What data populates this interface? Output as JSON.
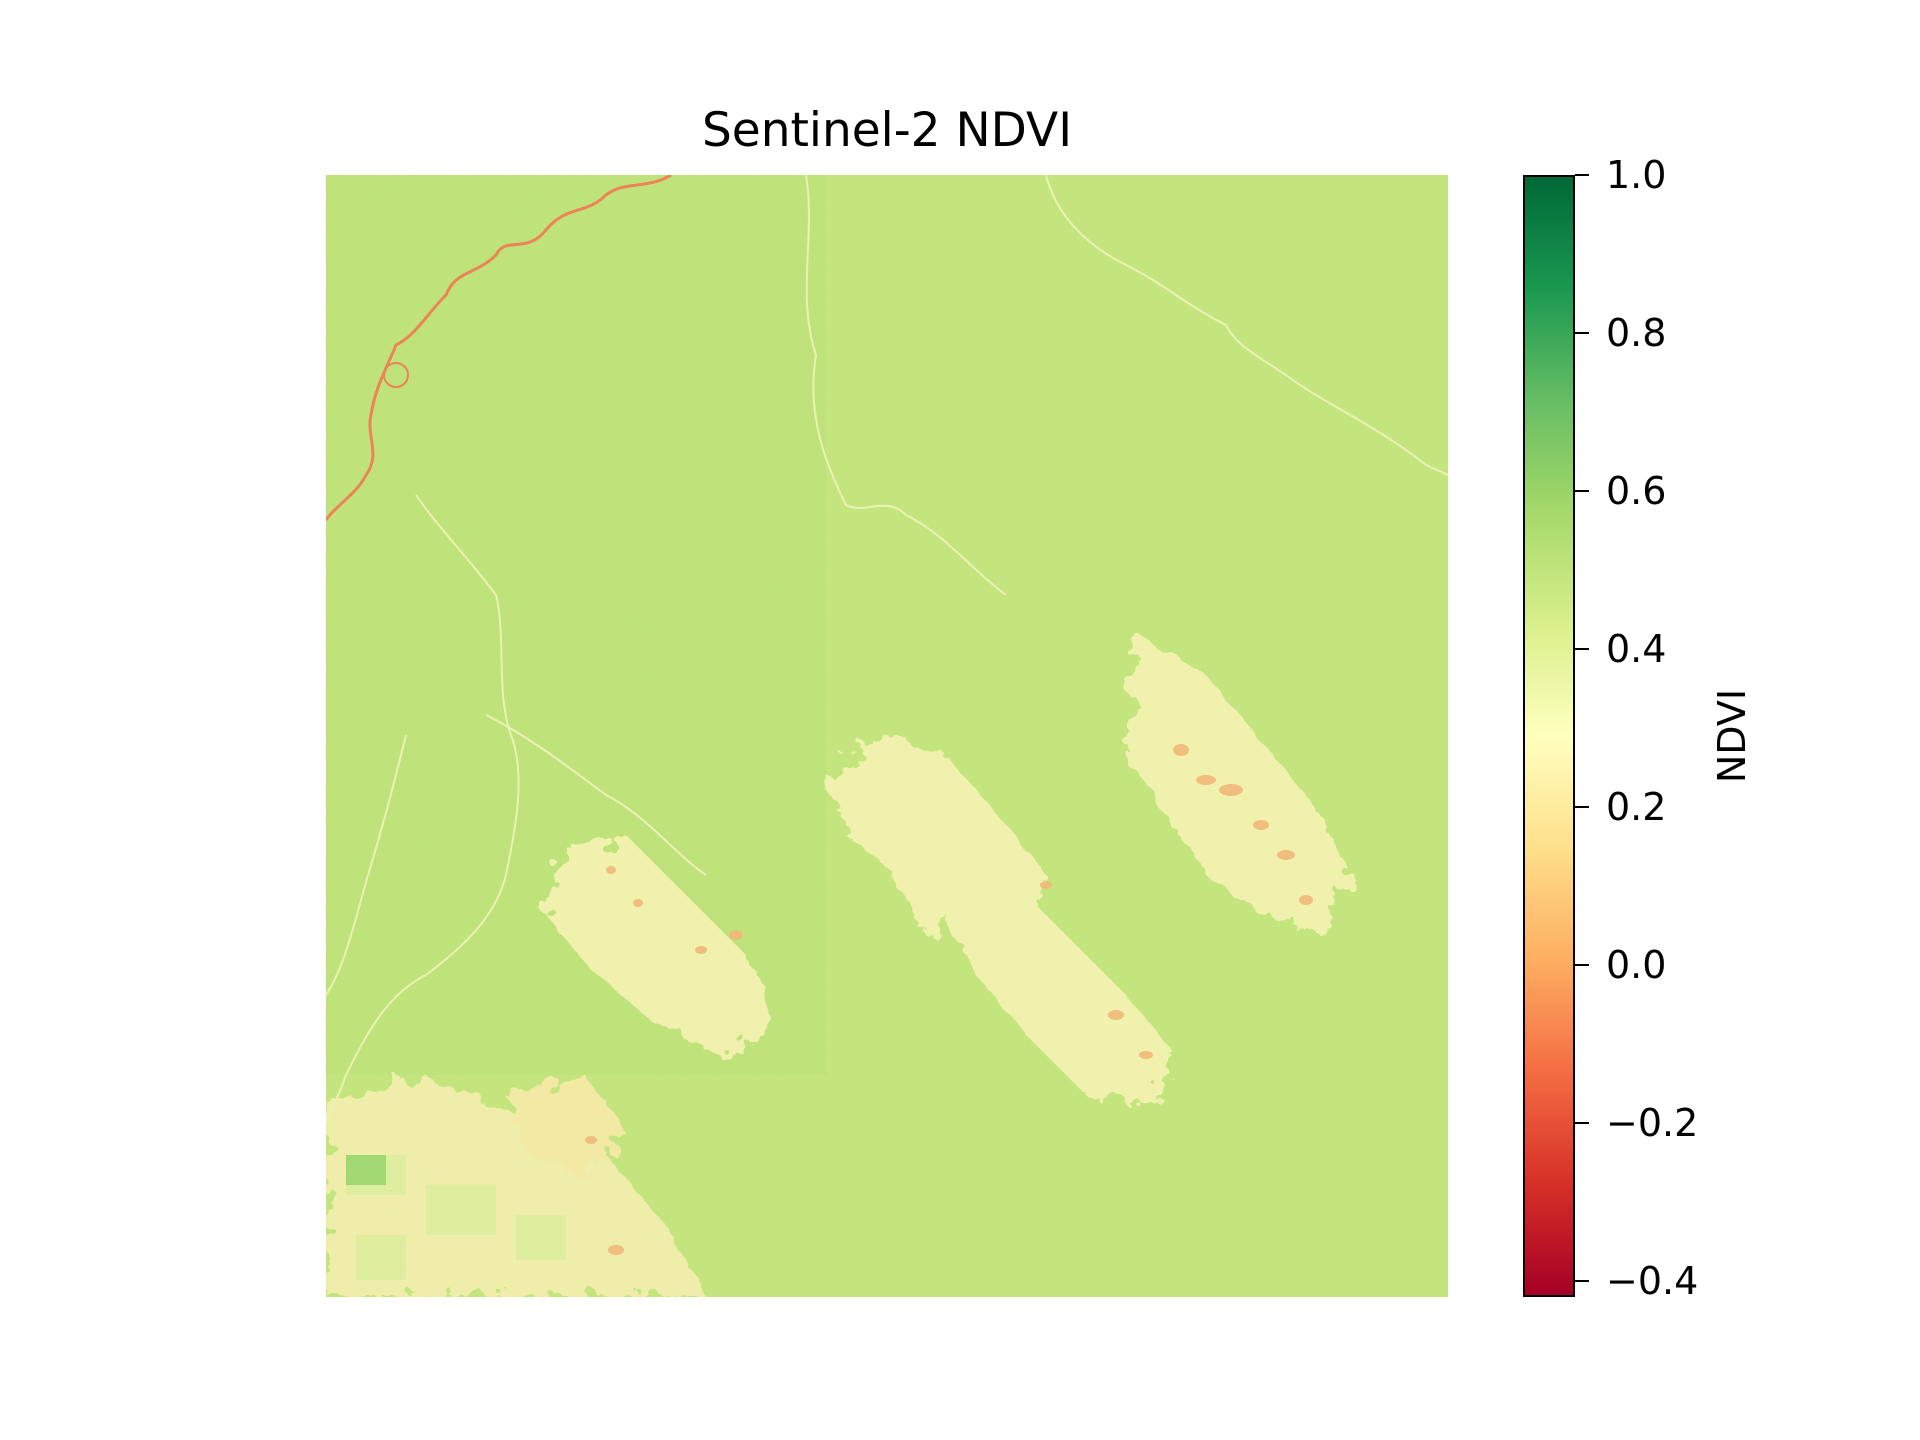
{
  "figure": {
    "title": "Sentinel-2 NDVI"
  },
  "colorbar": {
    "label": "NDVI",
    "colormap": "RdYlGn",
    "range": [
      -0.42,
      1.0
    ],
    "ticks": [
      {
        "value": 1.0,
        "label": "1.0"
      },
      {
        "value": 0.8,
        "label": "0.8"
      },
      {
        "value": 0.6,
        "label": "0.6"
      },
      {
        "value": 0.4,
        "label": "0.4"
      },
      {
        "value": 0.2,
        "label": "0.2"
      },
      {
        "value": 0.0,
        "label": "0.0"
      },
      {
        "value": -0.2,
        "label": "−0.2"
      },
      {
        "value": -0.4,
        "label": "−0.4"
      }
    ]
  },
  "colors": {
    "vegetation_base": "#c3e57b",
    "sparse_vegetation": "#f2f5b0",
    "bare_soil": "#f9d88c",
    "water_channel": "#f07a4e"
  }
}
